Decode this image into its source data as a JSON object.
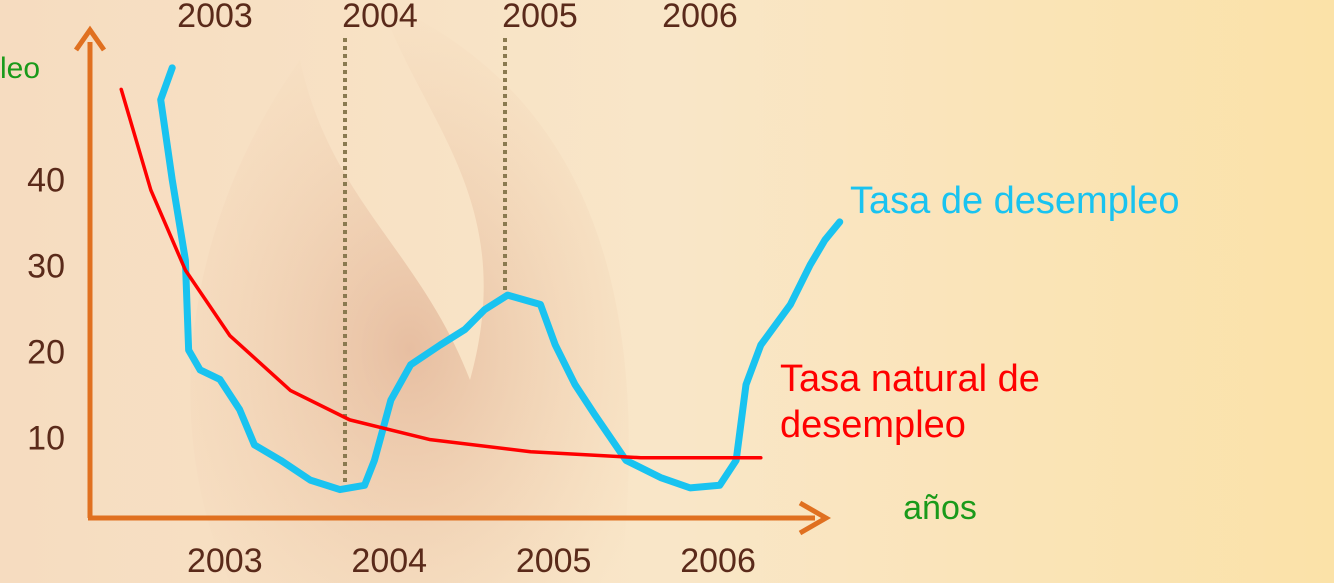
{
  "chart_data": {
    "type": "line",
    "y_label": "leo",
    "x_label": "años",
    "top_labels": [
      "2003",
      "2004",
      "2005",
      "2006"
    ],
    "xlim": [
      2002.18,
      2006.62
    ],
    "xticks": [
      2003,
      2004,
      2005,
      2006
    ],
    "ylim": [
      1,
      57
    ],
    "yticks": [
      10,
      20,
      30,
      40
    ],
    "grid": false,
    "series": [
      {
        "name": "Tasa de desempleo",
        "color": "#19c3f0",
        "x": [
          2002.68,
          2002.61,
          2002.68,
          2002.76,
          2002.78,
          2002.85,
          2002.97,
          2003.09,
          2003.18,
          2003.34,
          2003.52,
          2003.7,
          2003.85,
          2003.91,
          2004.01,
          2004.13,
          2004.31,
          2004.46,
          2004.58,
          2004.72,
          2004.92,
          2005.01,
          2005.13,
          2005.25,
          2005.44,
          2005.65,
          2005.83,
          2006.01,
          2006.11,
          2006.17,
          2006.26,
          2006.44,
          2006.56,
          2006.65,
          2006.74
        ],
        "values": [
          53.3,
          49.6,
          40.3,
          31.0,
          20.5,
          18.2,
          17.1,
          13.6,
          9.5,
          7.7,
          5.4,
          4.3,
          4.8,
          7.7,
          14.7,
          18.8,
          21.1,
          22.9,
          25.2,
          26.9,
          25.8,
          21.1,
          16.5,
          13.0,
          7.7,
          5.7,
          4.5,
          4.8,
          7.7,
          16.5,
          21.1,
          25.8,
          30.4,
          33.3,
          35.4
        ]
      },
      {
        "name": "Tasa natural de desempleo",
        "color": "#ff0000",
        "x": [
          2002.37,
          2002.55,
          2002.76,
          2003.03,
          2003.4,
          2003.76,
          2004.25,
          2004.86,
          2005.53,
          2006.26
        ],
        "values": [
          50.8,
          39.1,
          29.8,
          22.2,
          15.8,
          12.4,
          10.1,
          8.7,
          8.0,
          8.0
        ]
      }
    ]
  }
}
